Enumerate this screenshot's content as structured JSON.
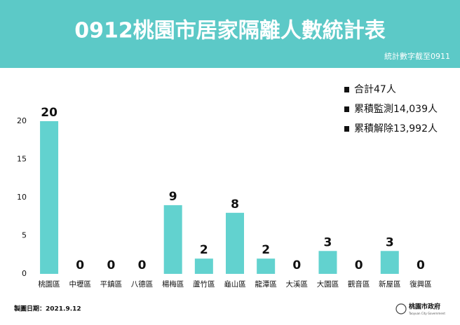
{
  "chart_data": {
    "type": "bar",
    "title": "0912桃園市居家隔離人數統計表",
    "subtitle": "統計數字截至0911",
    "categories": [
      "桃園區",
      "中壢區",
      "平鎮區",
      "八德區",
      "楊梅區",
      "蘆竹區",
      "龜山區",
      "龍潭區",
      "大溪區",
      "大園區",
      "觀音區",
      "新屋區",
      "復興區"
    ],
    "values": [
      20,
      0,
      0,
      0,
      9,
      2,
      8,
      2,
      0,
      3,
      0,
      3,
      0
    ],
    "color": "#62d2cf",
    "ylim": [
      0,
      20
    ],
    "yticks": [
      0,
      5,
      10,
      15,
      20
    ],
    "grid": false,
    "annotations": [
      "合計47人",
      "累積監測14,039人",
      "累積解除13,992人"
    ]
  },
  "footer": {
    "date": "製圖日期：2021.9.12",
    "logo": "桃園市政府",
    "logo_en": "Taoyuan City Government"
  }
}
